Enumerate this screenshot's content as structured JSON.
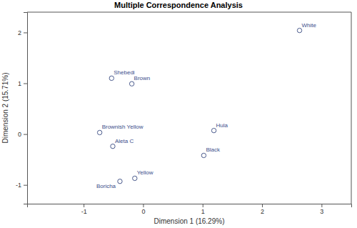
{
  "chart_data": {
    "type": "scatter",
    "title": "Multiple Correspondence Analysis",
    "x_label": "Dimension 1 (16.29%)",
    "y_label": "Dimension 2 (15.71%)",
    "point_labels": [
      "White",
      "Shebedi",
      "Brown",
      "Brownish Yellow",
      "Hula",
      "Aleta C",
      "Black",
      "Yellow",
      "Boricha"
    ],
    "x": [
      2.63,
      -0.53,
      -0.19,
      -0.73,
      1.19,
      -0.51,
      1.02,
      -0.14,
      -0.39
    ],
    "values": [
      2.04,
      1.1,
      0.99,
      0.03,
      0.07,
      -0.24,
      -0.42,
      -0.87,
      -0.93
    ],
    "color": "#4a5a8c",
    "marker": "open-circle",
    "xlim": [
      -1.95,
      3.5
    ],
    "ylim": [
      -1.37,
      2.4
    ],
    "xticks": [
      -1,
      0,
      1,
      2,
      3
    ],
    "yticks": [
      -1,
      0,
      1,
      2
    ],
    "grid": false
  }
}
